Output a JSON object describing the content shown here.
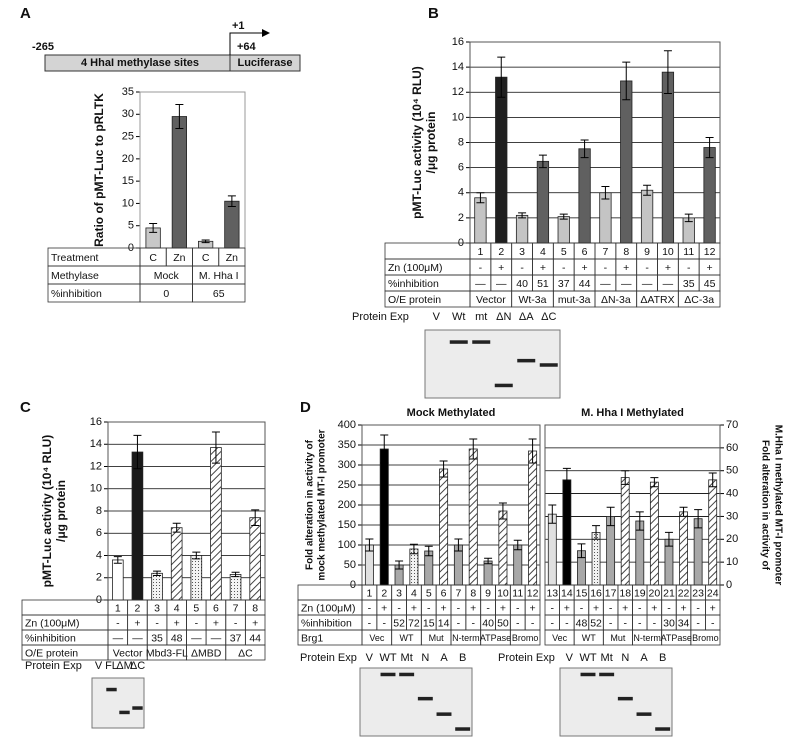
{
  "chart_data": [
    {
      "type": "bar",
      "panel": "A",
      "construct": {
        "start": "-265",
        "sites": "4 HhaI methylase sites",
        "tss": "+1",
        "end": "+64",
        "reporter": "Luciferase"
      },
      "ylabel": "Ratio of pMT-Luc to pRLTK",
      "ylim": [
        0,
        35
      ],
      "yticks": [
        0,
        5,
        10,
        15,
        20,
        25,
        30,
        35
      ],
      "grid": false,
      "values": [
        4.5,
        29.5,
        1.5,
        10.5
      ],
      "errors": [
        1,
        2.7,
        0.3,
        1.2
      ],
      "fills": [
        "#c8c8c8",
        "#606060",
        "#c8c8c8",
        "#606060"
      ],
      "table": [
        {
          "label": "Treatment",
          "cells": [
            "C",
            "Zn",
            "C",
            "Zn"
          ]
        },
        {
          "label": "Methylase",
          "cells": [
            "Mock",
            "M. Hha I"
          ]
        },
        {
          "label": "%inhibition",
          "cells": [
            0,
            65
          ]
        }
      ]
    },
    {
      "type": "bar",
      "panel": "B",
      "ylabel": [
        "pMT-Luc activity (10⁴ RLU)",
        "/μg protein"
      ],
      "ylim": [
        0,
        16
      ],
      "yticks": [
        0,
        2,
        4,
        6,
        8,
        10,
        12,
        14,
        16
      ],
      "grid": true,
      "categories": [
        "1",
        "2",
        "3",
        "4",
        "5",
        "6",
        "7",
        "8",
        "9",
        "10",
        "11",
        "12"
      ],
      "values": [
        3.6,
        13.2,
        2.2,
        6.5,
        2.1,
        7.5,
        4.0,
        12.9,
        4.2,
        13.6,
        2.0,
        7.6
      ],
      "errors": [
        0.4,
        1.6,
        0.2,
        0.5,
        0.2,
        0.7,
        0.5,
        1.5,
        0.4,
        1.7,
        0.3,
        0.8
      ],
      "fills": [
        "#c4c4c4",
        "#202020",
        "#c4c4c4",
        "#606060",
        "#c4c4c4",
        "#606060",
        "#c4c4c4",
        "#606060",
        "#c4c4c4",
        "#606060",
        "#c4c4c4",
        "#606060"
      ],
      "table": [
        {
          "label": "Zn (100μM)",
          "cells": [
            "-",
            "+",
            "-",
            "+",
            "-",
            "+",
            "-",
            "+",
            "-",
            "+",
            "-",
            "+"
          ]
        },
        {
          "label": "%inhibition",
          "cells": [
            "—",
            "—",
            40,
            51,
            37,
            44,
            "—",
            "—",
            "—",
            "—",
            35,
            45
          ]
        },
        {
          "label": "O/E protein",
          "cells": [
            "Vector",
            "Wt-3a",
            "mut-3a",
            "ΔN-3a",
            "ΔATRX",
            "ΔC-3a"
          ]
        }
      ],
      "protein_exp": {
        "label": "Protein Exp",
        "lanes": [
          "V",
          "Wt",
          "mt",
          "ΔN",
          "ΔA",
          "ΔC"
        ]
      }
    },
    {
      "type": "bar",
      "panel": "C",
      "ylabel": [
        "pMT-Luc activity (10⁴ RLU)",
        "/μg protein"
      ],
      "ylim": [
        0,
        16
      ],
      "yticks": [
        0,
        2,
        4,
        6,
        8,
        10,
        12,
        14,
        16
      ],
      "grid": true,
      "categories": [
        "1",
        "2",
        "3",
        "4",
        "5",
        "6",
        "7",
        "8"
      ],
      "values": [
        3.6,
        13.3,
        2.4,
        6.5,
        4.0,
        13.7,
        2.3,
        7.4
      ],
      "errors": [
        0.3,
        1.5,
        0.2,
        0.4,
        0.3,
        1.4,
        0.2,
        0.7
      ],
      "fills": [
        "#ffffff",
        "#1a1a1a",
        "dotted",
        "hatched",
        "dotted",
        "hatched",
        "dotted",
        "hatched"
      ],
      "table": [
        {
          "label": "Zn (100μM)",
          "cells": [
            "-",
            "+",
            "-",
            "+",
            "-",
            "+",
            "-",
            "+"
          ]
        },
        {
          "label": "%inhibition",
          "cells": [
            "—",
            "—",
            35,
            48,
            "—",
            "—",
            37,
            44
          ]
        },
        {
          "label": "O/E protein",
          "cells": [
            "Vector",
            "Mbd3-FL",
            "ΔMBD",
            "ΔC"
          ]
        }
      ],
      "protein_exp": {
        "label": "Protein Exp",
        "lanes": [
          "V",
          "FL",
          "ΔM",
          "ΔC"
        ]
      }
    },
    {
      "type": "bar",
      "panel": "D",
      "title": "Mock Methylated",
      "ylabel": [
        "Fold alteration in activity of",
        "mock methylated MT-I promoter"
      ],
      "ylim": [
        0,
        400
      ],
      "yticks": [
        0,
        50,
        100,
        150,
        200,
        250,
        300,
        350,
        400
      ],
      "grid": true,
      "categories": [
        "1",
        "2",
        "3",
        "4",
        "5",
        "6",
        "7",
        "8",
        "9",
        "10",
        "11",
        "12"
      ],
      "values": [
        100,
        340,
        50,
        90,
        85,
        290,
        100,
        340,
        60,
        185,
        100,
        335
      ],
      "errors": [
        15,
        35,
        10,
        12,
        12,
        20,
        15,
        25,
        7,
        20,
        12,
        30
      ],
      "fills": [
        "#e0e0e0",
        "#000000",
        "#a8a8a8",
        "dotted",
        "#a8a8a8",
        "hatched",
        "#a8a8a8",
        "hatched",
        "#a8a8a8",
        "hatched",
        "#a8a8a8",
        "hatched"
      ],
      "table": [
        {
          "label": "Zn (100μM)",
          "cells": [
            "-",
            "+",
            "-",
            "+",
            "-",
            "+",
            "-",
            "+",
            "-",
            "+",
            "-",
            "+"
          ]
        },
        {
          "label": "%inhibition",
          "cells": [
            "-",
            "-",
            52,
            72,
            15,
            14,
            "-",
            "-",
            40,
            50,
            "-",
            "-"
          ]
        },
        {
          "label": "Brg1",
          "cells": [
            "Vec",
            "WT",
            "Mut",
            "N-term",
            "ATPase",
            "Bromo"
          ]
        }
      ],
      "protein_exp": {
        "label": "Protein Exp",
        "lanes": [
          "V",
          "WT",
          "Mt",
          "N",
          "A",
          "B"
        ]
      }
    },
    {
      "type": "bar",
      "title": "M. Hha I Methylated",
      "axis_side": "right",
      "ylabel": [
        "Fold alteration in activity of",
        "M.Hha I methylated MT-I promoter"
      ],
      "ylim": [
        0,
        70
      ],
      "yticks": [
        0,
        10,
        20,
        30,
        40,
        50,
        60,
        70
      ],
      "grid": true,
      "categories": [
        "13",
        "14",
        "15",
        "16",
        "17",
        "18",
        "19",
        "20",
        "21",
        "22",
        "23",
        "24"
      ],
      "values": [
        31,
        46,
        15,
        23,
        30,
        47,
        28,
        45,
        20,
        32,
        29,
        46
      ],
      "errors": [
        4,
        5,
        3,
        3,
        4,
        3,
        4,
        2,
        3,
        2,
        4,
        3
      ],
      "fills": [
        "#e0e0e0",
        "#000000",
        "#a8a8a8",
        "dotted",
        "#a8a8a8",
        "hatched",
        "#a8a8a8",
        "hatched",
        "#a8a8a8",
        "hatched",
        "#a8a8a8",
        "hatched"
      ],
      "table": [
        {
          "cells": [
            "-",
            "+",
            "-",
            "+",
            "-",
            "+",
            "-",
            "+",
            "-",
            "+",
            "-",
            "+"
          ]
        },
        {
          "cells": [
            "-",
            "-",
            48,
            52,
            "-",
            "-",
            "-",
            "-",
            30,
            34,
            "-",
            "-"
          ]
        },
        {
          "cells": [
            "Vec",
            "WT",
            "Mut",
            "N-term",
            "ATPase",
            "Bromo"
          ]
        }
      ],
      "protein_exp": {
        "label": "Protein Exp",
        "lanes": [
          "V",
          "WT",
          "Mt",
          "N",
          "A",
          "B"
        ]
      }
    }
  ]
}
